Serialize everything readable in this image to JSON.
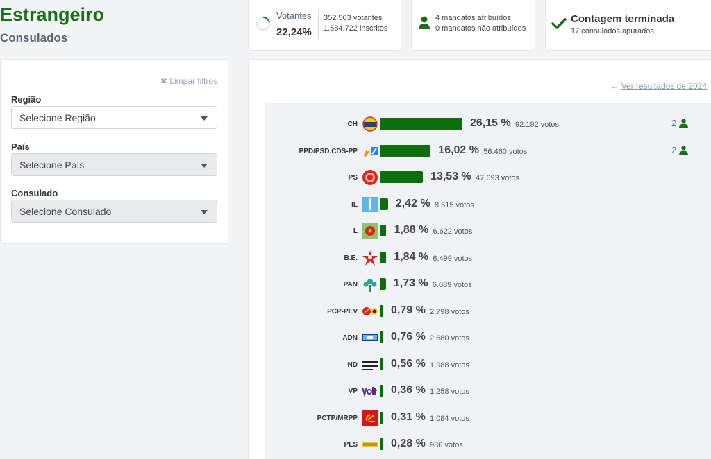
{
  "header": {
    "title": "Estrangeiro",
    "subtitle": "Consulados"
  },
  "votantes": {
    "label": "Votantes",
    "percent": "22,24%",
    "percent_value": 22.24,
    "votantes": "352.503 votantes",
    "inscritos": "1.584.722 inscritos"
  },
  "mandatos": {
    "atribuidos": "4 mandatos atribuídos",
    "nao_atribuidos": "0 mandatos não atribuídos"
  },
  "contagem": {
    "title": "Contagem terminada",
    "subtitle": "17 consulados apurados"
  },
  "filters": {
    "clear_label": "Limpar filtros",
    "regiao": {
      "label": "Região",
      "placeholder": "Selecione Região"
    },
    "pais": {
      "label": "País",
      "placeholder": "Selecione País"
    },
    "consulado": {
      "label": "Consulado",
      "placeholder": "Selecione Consulado"
    }
  },
  "results": {
    "previous_link": "Ver resultados de 2024"
  },
  "colors": {
    "brand_green": "#1a6e1a",
    "bar_green": "#0d6e0d",
    "link_blue": "#2a8ab4"
  },
  "chart_data": {
    "type": "bar",
    "orientation": "horizontal",
    "categories": [
      "CH",
      "PPD/PSD.CDS-PP",
      "PS",
      "IL",
      "L",
      "B.E.",
      "PAN",
      "PCP-PEV",
      "ADN",
      "ND",
      "VP",
      "PCTP/MRPP",
      "PLS"
    ],
    "values": [
      26.15,
      16.02,
      13.53,
      2.42,
      1.88,
      1.84,
      1.73,
      0.79,
      0.76,
      0.56,
      0.36,
      0.31,
      0.28
    ],
    "percent_labels": [
      "26,15 %",
      "16,02 %",
      "13,53 %",
      "2,42 %",
      "1,88 %",
      "1,84 %",
      "1,73 %",
      "0,79 %",
      "0,76 %",
      "0,56 %",
      "0,36 %",
      "0,31 %",
      "0,28 %"
    ],
    "vote_labels": [
      "92.192 votos",
      "56.460 votos",
      "47.693 votos",
      "8.515 votos",
      "6.622 votos",
      "6.499 votos",
      "6.089 votos",
      "2.798 votos",
      "2.680 votos",
      "1.988 votos",
      "1.258 votos",
      "1.084 votos",
      "986 votos"
    ],
    "seats": [
      "2",
      "2",
      "",
      "",
      "",
      "",
      "",
      "",
      "",
      "",
      "",
      "",
      ""
    ],
    "logo_icons": [
      "chega-logo-icon",
      "ad-logo-icon",
      "ps-logo-icon",
      "il-logo-icon",
      "livre-logo-icon",
      "be-logo-icon",
      "pan-logo-icon",
      "cdu-logo-icon",
      "adn-logo-icon",
      "nd-logo-icon",
      "volt-logo-icon",
      "pctp-logo-icon",
      "pls-logo-icon"
    ]
  }
}
